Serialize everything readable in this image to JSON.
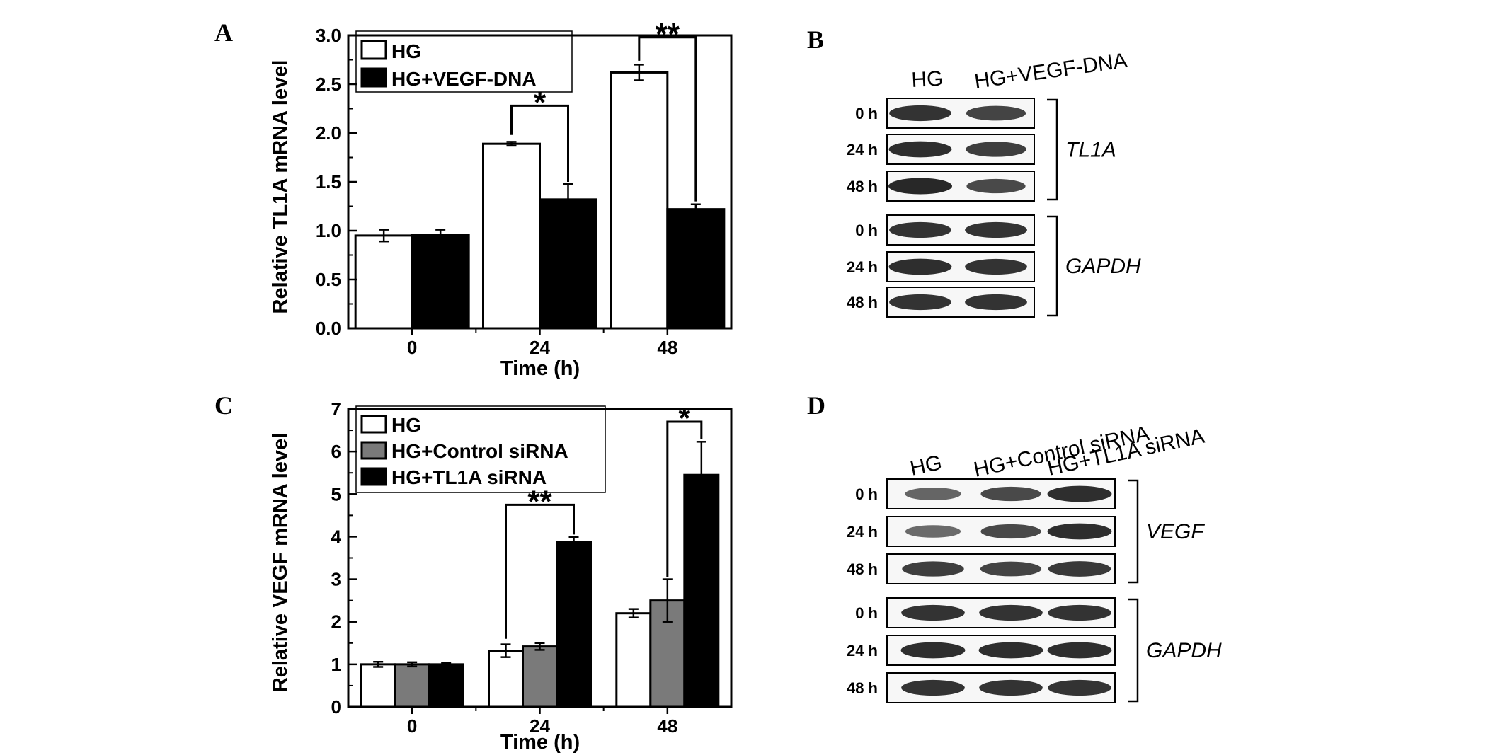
{
  "colors": {
    "hg": "#ffffff",
    "control_sirna": "#7a7a7a",
    "dark": "#000000"
  },
  "panels": {
    "A": {
      "letter": "A"
    },
    "B": {
      "letter": "B",
      "lanes": [
        "HG",
        "HG+VEGF-DNA"
      ],
      "rows": [
        "0 h",
        "24 h",
        "48 h"
      ],
      "genes": [
        "TL1A",
        "GAPDH"
      ],
      "band_intensity": {
        "TL1A": [
          [
            0.9,
            0.75
          ],
          [
            0.95,
            0.8
          ],
          [
            1.0,
            0.7
          ]
        ],
        "GAPDH": [
          [
            0.9,
            0.9
          ],
          [
            0.95,
            0.9
          ],
          [
            0.9,
            0.9
          ]
        ]
      }
    },
    "C": {
      "letter": "C"
    },
    "D": {
      "letter": "D",
      "lanes": [
        "HG",
        "HG+Control siRNA",
        "HG+TL1A siRNA"
      ],
      "rows": [
        "0 h",
        "24 h",
        "48 h"
      ],
      "genes": [
        "VEGF",
        "GAPDH"
      ],
      "band_intensity": {
        "VEGF": [
          [
            0.45,
            0.7,
            0.95
          ],
          [
            0.4,
            0.7,
            0.95
          ],
          [
            0.8,
            0.75,
            0.85
          ]
        ],
        "GAPDH": [
          [
            0.9,
            0.9,
            0.9
          ],
          [
            0.95,
            0.95,
            0.95
          ],
          [
            0.9,
            0.9,
            0.9
          ]
        ]
      }
    }
  },
  "chart_data": [
    {
      "type": "bar",
      "panel": "A",
      "categories": [
        "0",
        "24",
        "48"
      ],
      "series": [
        {
          "name": "HG",
          "values": [
            0.95,
            1.89,
            2.62
          ],
          "errors": [
            0.06,
            0.02,
            0.08
          ],
          "color": "#ffffff"
        },
        {
          "name": "HG+VEGF-DNA",
          "values": [
            0.96,
            1.32,
            1.22
          ],
          "errors": [
            0.05,
            0.16,
            0.05
          ],
          "color": "#000000"
        }
      ],
      "xlabel": "Time (h)",
      "ylabel": "Relative TL1A mRNA level",
      "ylim": [
        0,
        3.0
      ],
      "yticks": [
        "0.0",
        "0.5",
        "1.0",
        "1.5",
        "2.0",
        "2.5",
        "3.0"
      ],
      "legend_position": "top-left",
      "significance": [
        {
          "category": "24",
          "label": "*",
          "top": 2.28,
          "left_end": 1.98,
          "right_end": 1.5
        },
        {
          "category": "48",
          "label": "**",
          "top": 2.98,
          "left_end": 2.74,
          "right_end": 1.3
        }
      ]
    },
    {
      "type": "bar",
      "panel": "C",
      "categories": [
        "0",
        "24",
        "48"
      ],
      "series": [
        {
          "name": "HG",
          "values": [
            1.0,
            1.32,
            2.2
          ],
          "errors": [
            0.06,
            0.15,
            0.1
          ],
          "color": "#ffffff"
        },
        {
          "name": "HG+Control siRNA",
          "values": [
            1.0,
            1.42,
            2.5
          ],
          "errors": [
            0.05,
            0.08,
            0.5
          ],
          "color": "#7a7a7a"
        },
        {
          "name": "HG+TL1A siRNA",
          "values": [
            1.0,
            3.87,
            5.45
          ],
          "errors": [
            0.04,
            0.12,
            0.78
          ],
          "color": "#000000"
        }
      ],
      "xlabel": "Time (h)",
      "ylabel": "Relative VEGF mRNA level",
      "ylim": [
        0,
        7
      ],
      "yticks": [
        "0",
        "1",
        "2",
        "3",
        "4",
        "5",
        "6",
        "7"
      ],
      "legend_position": "top-left",
      "significance": [
        {
          "category": "24",
          "label": "**",
          "top": 4.75,
          "left_end": 1.6,
          "right_end": 4.05,
          "from": "HG",
          "to": "HG+TL1A siRNA"
        },
        {
          "category": "48",
          "label": "*",
          "top": 6.7,
          "left_end": 3.05,
          "right_end": 6.3,
          "from": "HG+Control siRNA",
          "to": "HG+TL1A siRNA"
        }
      ]
    }
  ]
}
